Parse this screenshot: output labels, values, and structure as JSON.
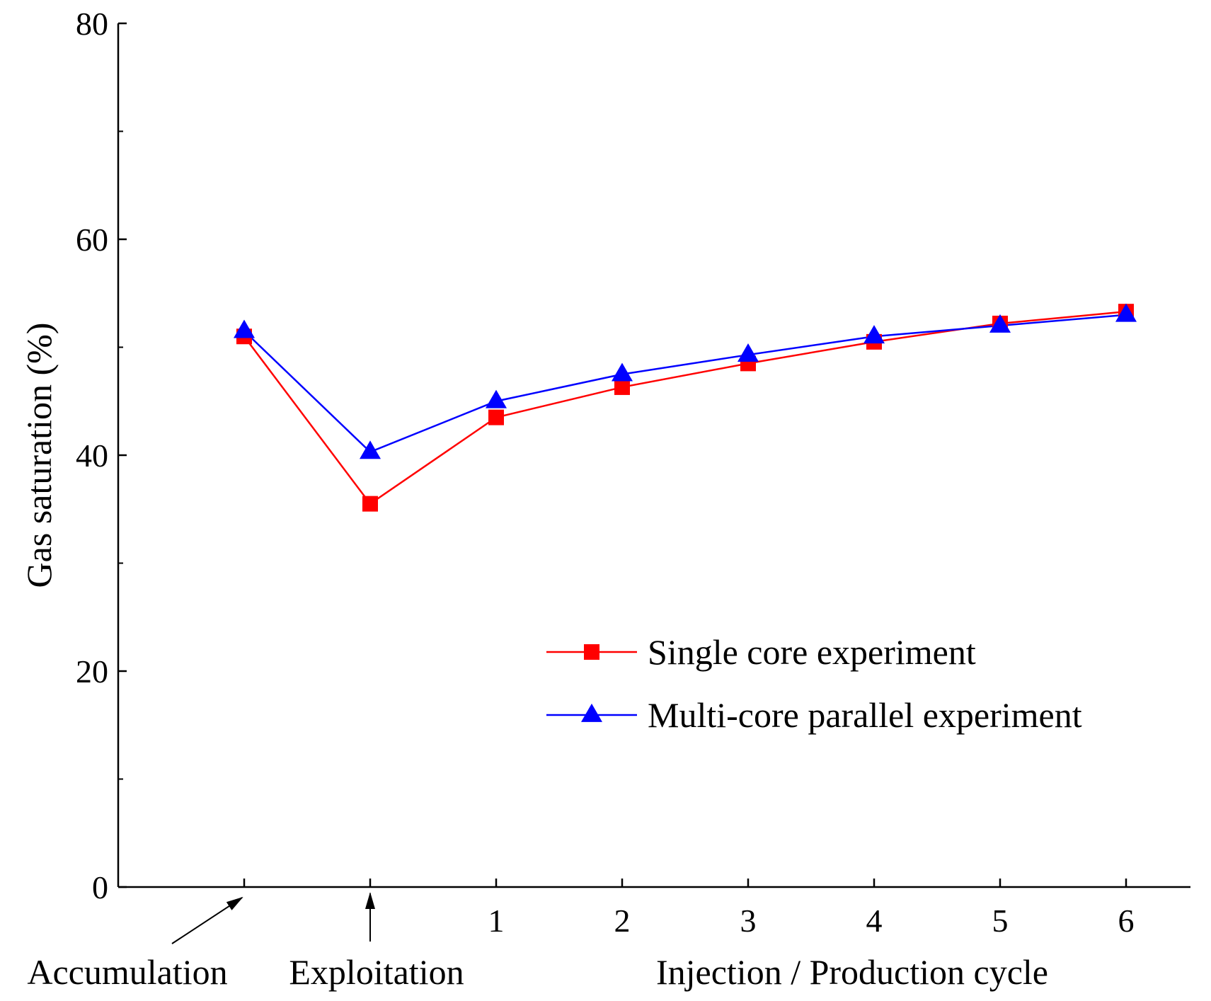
{
  "chart_data": {
    "type": "line",
    "title": "",
    "xlabel": "Injection / Production cycle",
    "ylabel": "Gas saturation (%)",
    "ylim": [
      0,
      80
    ],
    "yticks": [
      0,
      20,
      40,
      60,
      80
    ],
    "x_positions": [
      -1,
      0,
      1,
      2,
      3,
      4,
      5,
      6
    ],
    "x_tick_labels": [
      "",
      "",
      "1",
      "2",
      "3",
      "4",
      "5",
      "6"
    ],
    "stage_labels": {
      "accumulation": "Accumulation",
      "exploitation": "Exploitation"
    },
    "grid": false,
    "legend_position": "center-right",
    "series": [
      {
        "name": "Single core experiment",
        "color": "#ff0000",
        "marker": "square",
        "values": [
          51.0,
          35.5,
          43.5,
          46.3,
          48.5,
          50.5,
          52.2,
          53.3
        ]
      },
      {
        "name": "Multi-core parallel experiment",
        "color": "#0000ff",
        "marker": "triangle",
        "values": [
          51.5,
          40.3,
          45.0,
          47.5,
          49.3,
          51.0,
          52.0,
          53.0
        ]
      }
    ]
  }
}
